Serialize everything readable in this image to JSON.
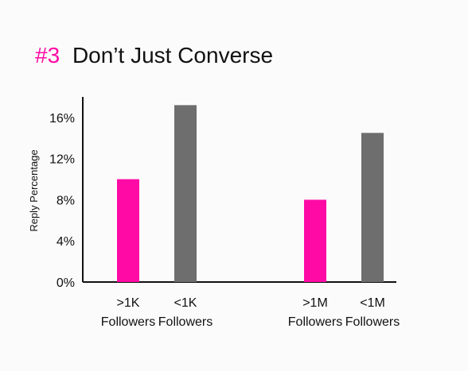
{
  "title": {
    "prefix": "#3",
    "text": "Don’t Just Converse"
  },
  "colors": {
    "accent": "#ff0aa5",
    "gray": "#6e6e6e",
    "axis": "#111111",
    "text": "#111111",
    "background": "#fbfbfb"
  },
  "chart_data": {
    "type": "bar",
    "title": "#3 Don’t Just Converse",
    "xlabel": "",
    "ylabel": "Reply Percentage",
    "ylim": [
      0,
      18
    ],
    "yticks": [
      0,
      4,
      8,
      12,
      16
    ],
    "ytick_labels": [
      "0%",
      "4%",
      "8%",
      "12%",
      "16%"
    ],
    "grid": false,
    "legend": "none",
    "bars": [
      {
        "label": [
          ">1K",
          "Followers"
        ],
        "value": 10.0,
        "color": "#ff0aa5"
      },
      {
        "label": [
          "<1K",
          "Followers"
        ],
        "value": 17.2,
        "color": "#6e6e6e"
      },
      {
        "label": [
          ">1M",
          "Followers"
        ],
        "value": 8.0,
        "color": "#ff0aa5"
      },
      {
        "label": [
          "<1M",
          "Followers"
        ],
        "value": 14.5,
        "color": "#6e6e6e"
      }
    ]
  }
}
